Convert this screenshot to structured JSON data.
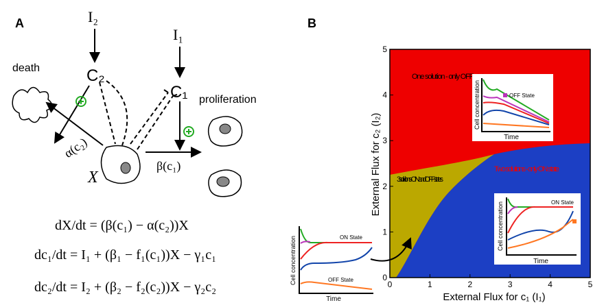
{
  "panel_a": {
    "label": "A",
    "nodes": {
      "i2": "I₂",
      "c2": "C₂",
      "i1": "I₁",
      "c1": "C₁",
      "death": "death",
      "proliferation": "proliferation",
      "alpha": "α(c₂)",
      "beta": "β(c₁)",
      "x": "X"
    },
    "equations": [
      "dX/dt = (β(c₁) − α(c₂))X",
      "dc₁/dt = I₁ + (β₁ − f₁(c₁))X − γ₁c₁",
      "dc₂/dt = I₂ + (β₂ − f₂(c₂))X − γ₂c₂"
    ]
  },
  "panel_b": {
    "label": "B",
    "xlabel": "External Flux for c₁ (I₁)",
    "ylabel": "External Flux for c₂ (I₂)",
    "xlim": [
      0,
      5
    ],
    "ylim": [
      0,
      5
    ],
    "xticks": [
      0,
      1,
      2,
      3,
      4,
      5
    ],
    "yticks": [
      0,
      1,
      2,
      3,
      4,
      5
    ],
    "regions": [
      "One solution - only OFF state",
      "Two solutions - only ON state",
      "3 solutions - ON and OFF states"
    ],
    "insets": [
      {
        "ylabel": "Cell concentration",
        "xlabel": "Time",
        "states": [
          "OFF State"
        ]
      },
      {
        "ylabel": "Cell concentration",
        "xlabel": "Time",
        "states": [
          "ON State"
        ]
      },
      {
        "ylabel": "Cell concentration",
        "xlabel": "Time",
        "states": [
          "ON State",
          "OFF State"
        ]
      }
    ]
  }
}
